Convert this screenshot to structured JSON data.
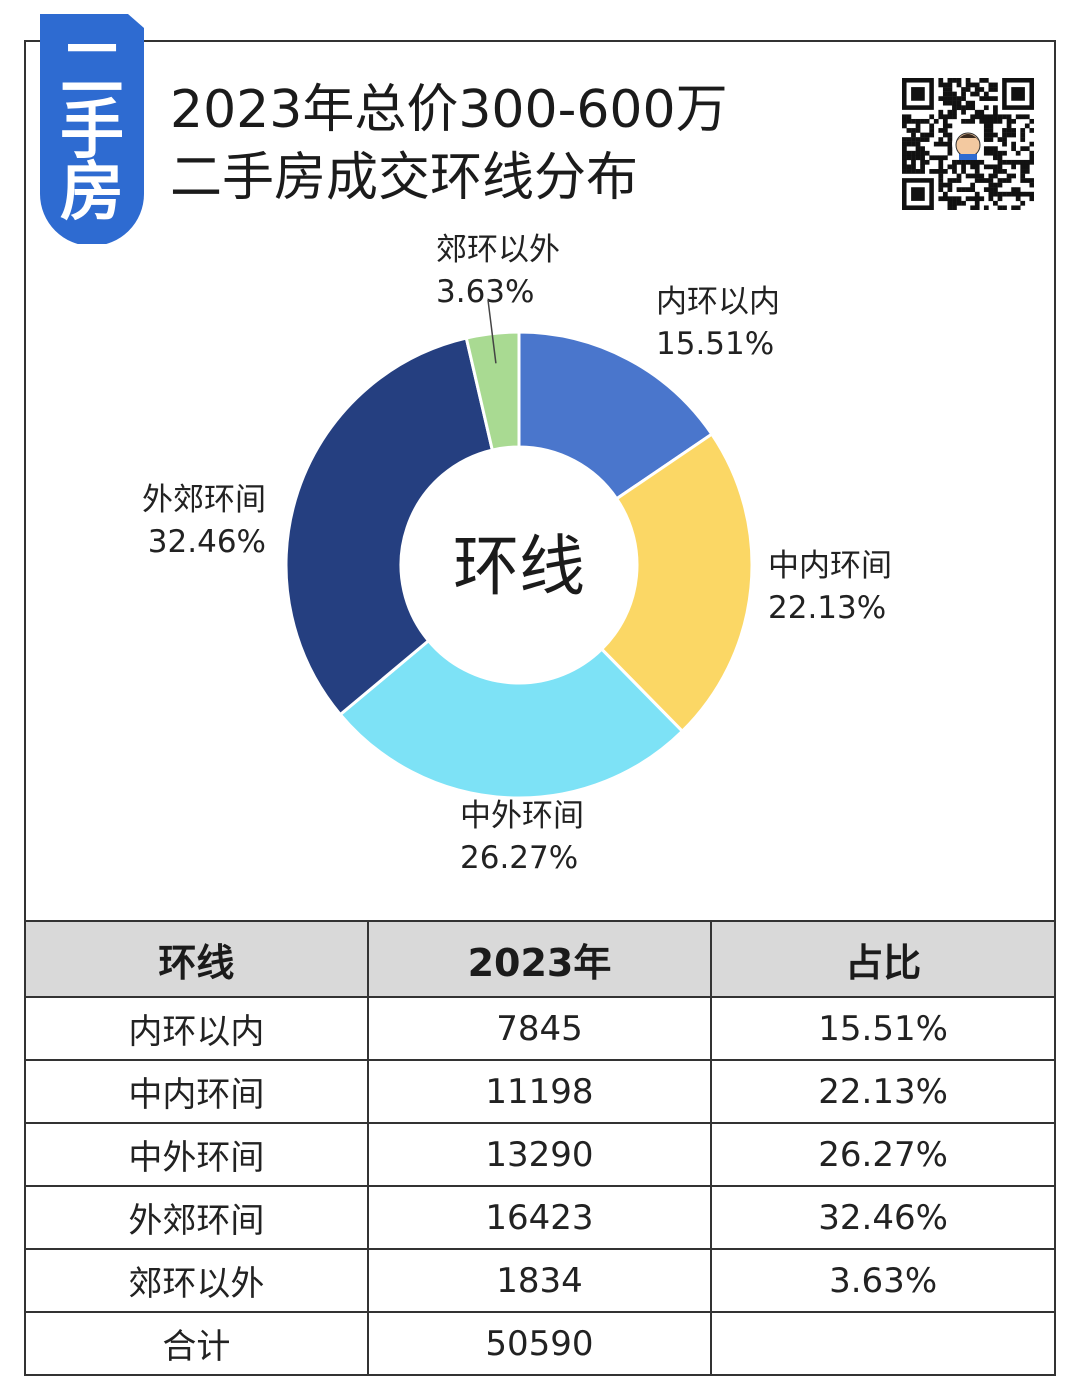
{
  "badge": {
    "chars": [
      "二",
      "手",
      "房"
    ],
    "color": "#2e6bd1"
  },
  "title": {
    "line1": "2023年总价300-600万",
    "line2": "二手房成交环线分布"
  },
  "qr_icon": "qr-code-icon",
  "chart_data": {
    "type": "pie",
    "variant": "donut",
    "center_label": "环线",
    "slices": [
      {
        "label": "内环以内",
        "value": 15.51,
        "value_text": "15.51%",
        "color": "#4a76cc"
      },
      {
        "label": "中内环间",
        "value": 22.13,
        "value_text": "22.13%",
        "color": "#fbd765"
      },
      {
        "label": "中外环间",
        "value": 26.27,
        "value_text": "26.27%",
        "color": "#7de2f6"
      },
      {
        "label": "外郊环间",
        "value": 32.46,
        "value_text": "32.46%",
        "color": "#253f80"
      },
      {
        "label": "郊环以外",
        "value": 3.63,
        "value_text": "3.63%",
        "color": "#a9da92"
      }
    ]
  },
  "table": {
    "headers": [
      "环线",
      "2023年",
      "占比"
    ],
    "rows": [
      [
        "内环以内",
        "7845",
        "15.51%"
      ],
      [
        "中内环间",
        "11198",
        "22.13%"
      ],
      [
        "中外环间",
        "13290",
        "26.27%"
      ],
      [
        "外郊环间",
        "16423",
        "32.46%"
      ],
      [
        "郊环以外",
        "1834",
        "3.63%"
      ],
      [
        "合计",
        "50590",
        ""
      ]
    ]
  }
}
